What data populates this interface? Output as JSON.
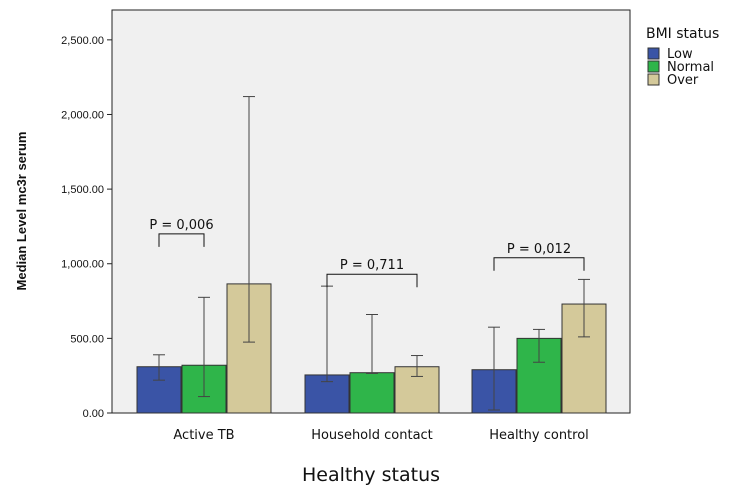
{
  "chart_data": {
    "type": "bar",
    "categories": [
      "Active TB",
      "Household contact",
      "Healthy control"
    ],
    "xlabel": "Healthy status",
    "ylabel": "Median Level mc3r serum",
    "ylim": [
      0,
      2700
    ],
    "yticks": [
      0,
      500,
      1000,
      1500,
      2000,
      2500
    ],
    "ytick_labels": [
      "0.00",
      "500.00",
      "1,000.00",
      "1,500.00",
      "2,000.00",
      "2,500.00"
    ],
    "grid": false,
    "legend": {
      "title": "BMI status",
      "placement": "right"
    },
    "series": [
      {
        "name": "Low",
        "color": "#3a54a6",
        "values": [
          310,
          255,
          290
        ],
        "err_low": [
          220,
          210,
          20
        ],
        "err_high": [
          390,
          850,
          575
        ]
      },
      {
        "name": "Normal",
        "color": "#2fb54a",
        "values": [
          320,
          270,
          500
        ],
        "err_low": [
          110,
          265,
          340
        ],
        "err_high": [
          775,
          660,
          560
        ]
      },
      {
        "name": "Over",
        "color": "#d4c99a",
        "values": [
          865,
          310,
          730
        ],
        "err_low": [
          475,
          245,
          510
        ],
        "err_high": [
          2120,
          385,
          895
        ]
      }
    ],
    "annotations": [
      {
        "text": "P = 0,006",
        "category": 0,
        "from_series": 0,
        "to_series": 1,
        "y": 1200
      },
      {
        "text": "P = 0,711",
        "category": 1,
        "from_series": 0,
        "to_series": 2,
        "y": 930
      },
      {
        "text": "P = 0,012",
        "category": 2,
        "from_series": 0,
        "to_series": 2,
        "y": 1040
      }
    ]
  }
}
